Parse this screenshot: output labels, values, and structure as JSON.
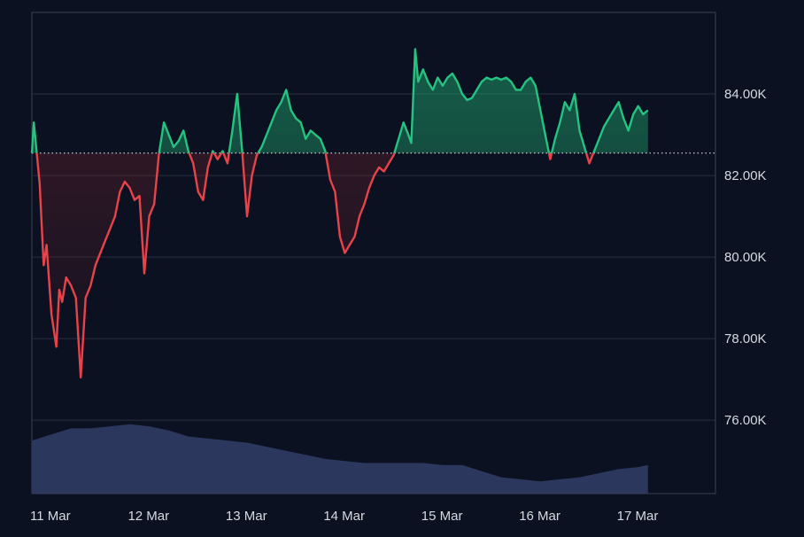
{
  "chart_data": {
    "type": "line",
    "title": "",
    "xlabel": "",
    "ylabel": "",
    "x_ticks": [
      "11 Mar",
      "12 Mar",
      "13 Mar",
      "14 Mar",
      "15 Mar",
      "16 Mar",
      "17 Mar"
    ],
    "y_ticks": [
      "76.00K",
      "78.00K",
      "80.00K",
      "82.00K",
      "84.00K"
    ],
    "ylim": [
      74.2,
      86.0
    ],
    "baseline": 82.55,
    "colors": {
      "above": "#26c281",
      "below": "#e8424a",
      "volume": "#2e3a62",
      "background": "#0b1120"
    },
    "series": [
      {
        "values": [
          [
            0.0,
            82.55
          ],
          [
            0.02,
            83.3
          ],
          [
            0.05,
            82.55
          ],
          [
            0.08,
            81.8
          ],
          [
            0.12,
            79.8
          ],
          [
            0.15,
            80.3
          ],
          [
            0.2,
            78.6
          ],
          [
            0.25,
            77.8
          ],
          [
            0.28,
            79.2
          ],
          [
            0.31,
            78.9
          ],
          [
            0.35,
            79.5
          ],
          [
            0.4,
            79.3
          ],
          [
            0.45,
            79.0
          ],
          [
            0.5,
            77.05
          ],
          [
            0.55,
            79.0
          ],
          [
            0.6,
            79.3
          ],
          [
            0.65,
            79.8
          ],
          [
            0.7,
            80.1
          ],
          [
            0.75,
            80.4
          ],
          [
            0.8,
            80.7
          ],
          [
            0.85,
            81.0
          ],
          [
            0.9,
            81.6
          ],
          [
            0.95,
            81.85
          ],
          [
            1.0,
            81.7
          ],
          [
            1.05,
            81.4
          ],
          [
            1.1,
            81.5
          ],
          [
            1.15,
            79.6
          ],
          [
            1.2,
            81.0
          ],
          [
            1.25,
            81.3
          ],
          [
            1.3,
            82.55
          ],
          [
            1.35,
            83.3
          ],
          [
            1.4,
            83.0
          ],
          [
            1.45,
            82.7
          ],
          [
            1.5,
            82.85
          ],
          [
            1.55,
            83.1
          ],
          [
            1.6,
            82.6
          ],
          [
            1.65,
            82.3
          ],
          [
            1.7,
            81.6
          ],
          [
            1.75,
            81.4
          ],
          [
            1.8,
            82.2
          ],
          [
            1.85,
            82.6
          ],
          [
            1.9,
            82.4
          ],
          [
            1.95,
            82.6
          ],
          [
            2.0,
            82.3
          ],
          [
            2.05,
            83.1
          ],
          [
            2.1,
            84.0
          ],
          [
            2.15,
            82.6
          ],
          [
            2.2,
            81.0
          ],
          [
            2.25,
            82.0
          ],
          [
            2.3,
            82.5
          ],
          [
            2.35,
            82.7
          ],
          [
            2.4,
            83.0
          ],
          [
            2.45,
            83.3
          ],
          [
            2.5,
            83.6
          ],
          [
            2.55,
            83.8
          ],
          [
            2.6,
            84.1
          ],
          [
            2.65,
            83.6
          ],
          [
            2.7,
            83.4
          ],
          [
            2.75,
            83.3
          ],
          [
            2.8,
            82.9
          ],
          [
            2.85,
            83.1
          ],
          [
            2.9,
            83.0
          ],
          [
            2.95,
            82.9
          ],
          [
            3.0,
            82.6
          ],
          [
            3.05,
            81.9
          ],
          [
            3.1,
            81.6
          ],
          [
            3.15,
            80.5
          ],
          [
            3.2,
            80.1
          ],
          [
            3.25,
            80.3
          ],
          [
            3.3,
            80.5
          ],
          [
            3.35,
            81.0
          ],
          [
            3.4,
            81.3
          ],
          [
            3.45,
            81.7
          ],
          [
            3.5,
            82.0
          ],
          [
            3.55,
            82.2
          ],
          [
            3.6,
            82.1
          ],
          [
            3.65,
            82.3
          ],
          [
            3.7,
            82.5
          ],
          [
            3.75,
            82.9
          ],
          [
            3.8,
            83.3
          ],
          [
            3.85,
            83.0
          ],
          [
            3.88,
            82.8
          ],
          [
            3.92,
            85.1
          ],
          [
            3.95,
            84.3
          ],
          [
            4.0,
            84.6
          ],
          [
            4.05,
            84.3
          ],
          [
            4.1,
            84.1
          ],
          [
            4.15,
            84.4
          ],
          [
            4.2,
            84.2
          ],
          [
            4.25,
            84.4
          ],
          [
            4.3,
            84.5
          ],
          [
            4.35,
            84.3
          ],
          [
            4.4,
            84.0
          ],
          [
            4.45,
            83.85
          ],
          [
            4.5,
            83.9
          ],
          [
            4.55,
            84.1
          ],
          [
            4.6,
            84.3
          ],
          [
            4.65,
            84.4
          ],
          [
            4.7,
            84.35
          ],
          [
            4.75,
            84.4
          ],
          [
            4.8,
            84.35
          ],
          [
            4.85,
            84.4
          ],
          [
            4.9,
            84.3
          ],
          [
            4.95,
            84.1
          ],
          [
            5.0,
            84.1
          ],
          [
            5.05,
            84.3
          ],
          [
            5.1,
            84.4
          ],
          [
            5.15,
            84.2
          ],
          [
            5.2,
            83.6
          ],
          [
            5.25,
            83.0
          ],
          [
            5.3,
            82.4
          ],
          [
            5.35,
            82.9
          ],
          [
            5.4,
            83.3
          ],
          [
            5.45,
            83.8
          ],
          [
            5.5,
            83.6
          ],
          [
            5.55,
            84.0
          ],
          [
            5.6,
            83.1
          ],
          [
            5.65,
            82.7
          ],
          [
            5.7,
            82.3
          ],
          [
            5.75,
            82.6
          ],
          [
            5.8,
            82.9
          ],
          [
            5.85,
            83.2
          ],
          [
            5.9,
            83.4
          ],
          [
            5.95,
            83.6
          ],
          [
            6.0,
            83.8
          ],
          [
            6.05,
            83.4
          ],
          [
            6.1,
            83.1
          ],
          [
            6.15,
            83.5
          ],
          [
            6.2,
            83.7
          ],
          [
            6.25,
            83.5
          ],
          [
            6.3,
            83.6
          ]
        ]
      }
    ],
    "volume": [
      [
        0.0,
        75.5
      ],
      [
        0.2,
        75.65
      ],
      [
        0.4,
        75.8
      ],
      [
        0.6,
        75.8
      ],
      [
        0.8,
        75.85
      ],
      [
        1.0,
        75.9
      ],
      [
        1.2,
        75.85
      ],
      [
        1.4,
        75.75
      ],
      [
        1.6,
        75.6
      ],
      [
        1.8,
        75.55
      ],
      [
        2.0,
        75.5
      ],
      [
        2.2,
        75.45
      ],
      [
        2.4,
        75.35
      ],
      [
        2.6,
        75.25
      ],
      [
        2.8,
        75.15
      ],
      [
        3.0,
        75.05
      ],
      [
        3.2,
        75.0
      ],
      [
        3.4,
        74.95
      ],
      [
        3.6,
        74.95
      ],
      [
        3.8,
        74.95
      ],
      [
        4.0,
        74.95
      ],
      [
        4.2,
        74.9
      ],
      [
        4.4,
        74.9
      ],
      [
        4.6,
        74.75
      ],
      [
        4.8,
        74.6
      ],
      [
        5.0,
        74.55
      ],
      [
        5.2,
        74.5
      ],
      [
        5.4,
        74.55
      ],
      [
        5.6,
        74.6
      ],
      [
        5.8,
        74.7
      ],
      [
        6.0,
        74.8
      ],
      [
        6.2,
        74.85
      ],
      [
        6.3,
        74.9
      ]
    ]
  }
}
